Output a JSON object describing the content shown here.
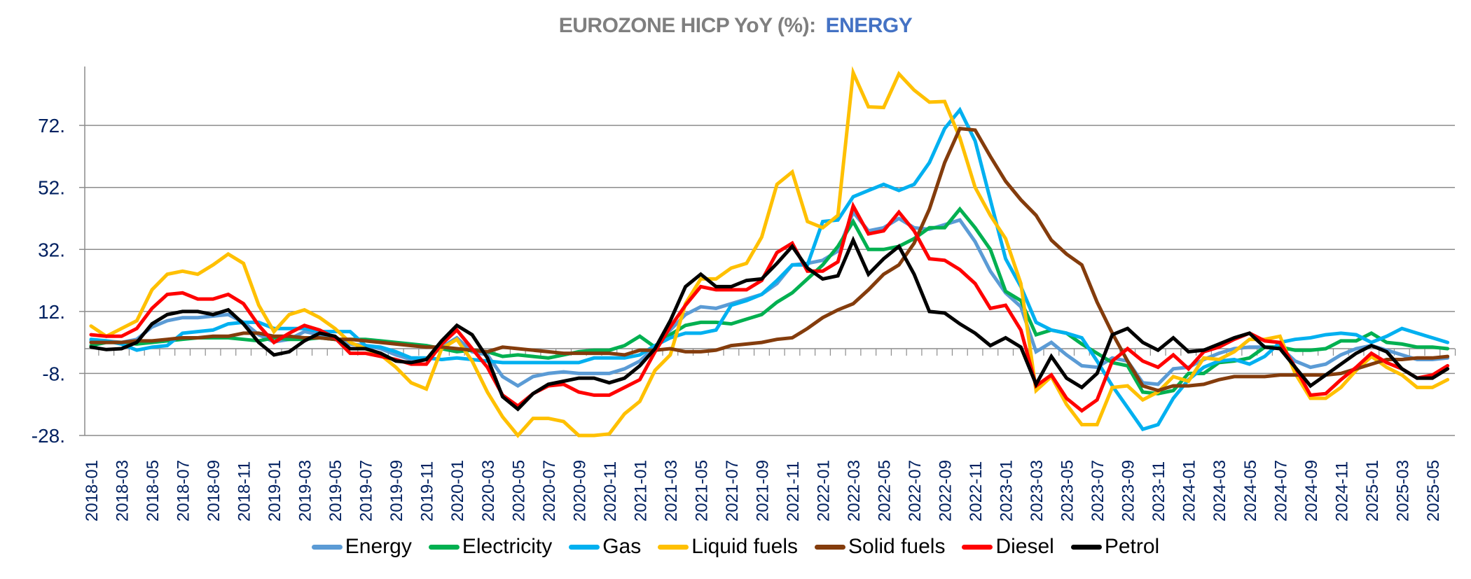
{
  "chart_data": {
    "type": "line",
    "title": "EUROZONE HICP YoY (%):",
    "title_accent": "ENERGY",
    "xlabel": "",
    "ylabel": "",
    "ylim": [
      -28,
      91
    ],
    "yticks": [
      -28,
      -8,
      12,
      32,
      52,
      72
    ],
    "ytick_labels": [
      "-28.",
      "-8.",
      "12.",
      "32.",
      "52.",
      "72."
    ],
    "grid": true,
    "legend_position": "bottom",
    "x": [
      "2018-01",
      "2018-02",
      "2018-03",
      "2018-04",
      "2018-05",
      "2018-06",
      "2018-07",
      "2018-08",
      "2018-09",
      "2018-10",
      "2018-11",
      "2018-12",
      "2019-01",
      "2019-02",
      "2019-03",
      "2019-04",
      "2019-05",
      "2019-06",
      "2019-07",
      "2019-08",
      "2019-09",
      "2019-10",
      "2019-11",
      "2019-12",
      "2020-01",
      "2020-02",
      "2020-03",
      "2020-04",
      "2020-05",
      "2020-06",
      "2020-07",
      "2020-08",
      "2020-09",
      "2020-10",
      "2020-11",
      "2020-12",
      "2021-01",
      "2021-02",
      "2021-03",
      "2021-04",
      "2021-05",
      "2021-06",
      "2021-07",
      "2021-08",
      "2021-09",
      "2021-10",
      "2021-11",
      "2021-12",
      "2022-01",
      "2022-02",
      "2022-03",
      "2022-04",
      "2022-05",
      "2022-06",
      "2022-07",
      "2022-08",
      "2022-09",
      "2022-10",
      "2022-11",
      "2022-12",
      "2023-01",
      "2023-02",
      "2023-03",
      "2023-04",
      "2023-05",
      "2023-06",
      "2023-07",
      "2023-08",
      "2023-09",
      "2023-10",
      "2023-11",
      "2023-12",
      "2024-01",
      "2024-02",
      "2024-03",
      "2024-04",
      "2024-05",
      "2024-06",
      "2024-07",
      "2024-08",
      "2024-09",
      "2024-10",
      "2024-11",
      "2024-12",
      "2025-01",
      "2025-02",
      "2025-03",
      "2025-04",
      "2025-05",
      "2025-06"
    ],
    "x_tick_labels": [
      "2018-01",
      "2018-03",
      "2018-05",
      "2018-07",
      "2018-09",
      "2018-11",
      "2019-01",
      "2019-03",
      "2019-05",
      "2019-07",
      "2019-09",
      "2019-11",
      "2020-01",
      "2020-03",
      "2020-05",
      "2020-07",
      "2020-09",
      "2020-11",
      "2021-01",
      "2021-03",
      "2021-05",
      "2021-07",
      "2021-09",
      "2021-11",
      "2022-01",
      "2022-03",
      "2022-05",
      "2022-07",
      "2022-09",
      "2022-11",
      "2023-01",
      "2023-03",
      "2023-05",
      "2023-07",
      "2023-09",
      "2023-11",
      "2024-01",
      "2024-03",
      "2024-05",
      "2024-07",
      "2024-09",
      "2024-11",
      "2025-01",
      "2025-03",
      "2025-05"
    ],
    "series": [
      {
        "name": "Energy",
        "color": "#5B9BD5",
        "values": [
          2.5,
          2.5,
          2,
          3,
          7,
          9,
          10,
          10,
          10.5,
          11,
          8.5,
          4.5,
          2.2,
          3,
          5.5,
          4.5,
          3,
          1.5,
          1,
          0,
          -2,
          -3.5,
          -3.5,
          0.5,
          3.5,
          -1,
          -2,
          -9,
          -12,
          -9,
          -8,
          -7.5,
          -8,
          -8,
          -8,
          -6.5,
          -4,
          0.5,
          6,
          11,
          13.5,
          13,
          14.5,
          16,
          17.5,
          21,
          27,
          27.5,
          28.5,
          31.5,
          44,
          38,
          39,
          42,
          39,
          38.5,
          40,
          41.5,
          34.5,
          25,
          18,
          13.5,
          -1,
          2,
          -2,
          -5.5,
          -6,
          -3,
          -4,
          -11,
          -11.5,
          -6.5,
          -6,
          -3.5,
          -1.5,
          0,
          0.5,
          0.5,
          0.5,
          -4,
          -6,
          -5,
          -2,
          0,
          1,
          -0.5,
          -2,
          -3.5,
          -3.5,
          -3
        ]
      },
      {
        "name": "Electricity",
        "color": "#00B050",
        "values": [
          1,
          2,
          2,
          1.5,
          2,
          2.5,
          3,
          3.5,
          3.5,
          3.5,
          3,
          2.5,
          3.5,
          3,
          3,
          3.5,
          3,
          3,
          3,
          2.5,
          2,
          1.5,
          1,
          0,
          -1,
          -0.5,
          -1,
          -2.5,
          -2,
          -2.5,
          -3,
          -2,
          -1,
          -0.5,
          -0.5,
          1,
          4,
          0.5,
          4.5,
          7.5,
          8.5,
          8.5,
          8,
          9.5,
          11,
          15,
          18,
          22.5,
          27,
          33,
          41,
          32,
          32,
          33,
          35.5,
          39,
          39,
          45,
          39,
          32,
          18.5,
          15.5,
          4.5,
          6,
          5,
          1.5,
          -1.5,
          -4.5,
          -5.5,
          -14,
          -14.5,
          -13.5,
          -8,
          -8,
          -4.5,
          -4,
          -3,
          0.5,
          0.5,
          -0.5,
          -0.5,
          0,
          2.5,
          2.5,
          5,
          2,
          1.5,
          0.5,
          0.5,
          0
        ]
      },
      {
        "name": "Gas",
        "color": "#00B0F0",
        "values": [
          3,
          2.5,
          1.5,
          -0.5,
          0.5,
          1,
          5,
          5.5,
          6,
          8,
          8.5,
          8.5,
          6.5,
          6.5,
          6.5,
          5.5,
          5.5,
          5.5,
          1,
          0.5,
          -1,
          -3,
          -3,
          -3.5,
          -3,
          -3.5,
          -4,
          -4.5,
          -4.5,
          -4.5,
          -4.5,
          -4.5,
          -4.5,
          -3,
          -3,
          -3,
          -2,
          1,
          3.5,
          5,
          5,
          6,
          14,
          15.5,
          17.5,
          22,
          27,
          27,
          41,
          41.5,
          49,
          51,
          53,
          51,
          53,
          60,
          71,
          77,
          67,
          48,
          29,
          20,
          8.5,
          6,
          5,
          3.5,
          -4,
          -12,
          -19,
          -26,
          -24.5,
          -16,
          -10,
          -6,
          -4,
          -3.5,
          -5,
          -2.5,
          2,
          3,
          3.5,
          4.5,
          5,
          4.5,
          2,
          4,
          6.5,
          5,
          3.5,
          2
        ]
      },
      {
        "name": "Liquid fuels",
        "color": "#FFC000",
        "values": [
          7.3,
          4,
          6.5,
          9,
          19,
          24,
          25,
          24,
          27,
          30.5,
          27.5,
          14,
          5.5,
          11,
          12.5,
          10,
          6.5,
          2,
          0,
          -2,
          -6,
          -11,
          -13,
          0,
          3,
          -4,
          -14,
          -22,
          -28,
          -22.5,
          -22.5,
          -23.5,
          -28,
          -28,
          -27.5,
          -21,
          -17,
          -7,
          -2,
          14.5,
          22.5,
          22.5,
          26,
          27.5,
          36,
          53,
          57,
          41,
          39,
          43,
          89,
          78,
          77.8,
          88.6,
          83.4,
          79.5,
          79.7,
          68,
          52,
          43,
          35.5,
          21,
          -13.5,
          -9,
          -18,
          -24.5,
          -24.5,
          -12.5,
          -12,
          -16.5,
          -14,
          -9,
          -10.5,
          -3,
          -3.5,
          -1,
          3,
          3,
          4,
          -8,
          -16,
          -16,
          -12.5,
          -7,
          -2.5,
          -6,
          -8.5,
          -12.5,
          -12.5,
          -10
        ]
      },
      {
        "name": "Solid fuels",
        "color": "#843C0C",
        "values": [
          2,
          2,
          2,
          2.5,
          2.5,
          3,
          3.5,
          3.5,
          4,
          4,
          5,
          5,
          4,
          4,
          3.5,
          3.5,
          3,
          3,
          2.5,
          2,
          1.5,
          1,
          0.5,
          0.5,
          0,
          -0.5,
          -1,
          0.5,
          0,
          -0.5,
          -1,
          -1.5,
          -1.5,
          -1.5,
          -1.5,
          -2,
          -0.5,
          -0.5,
          0,
          -1,
          -1,
          -0.5,
          1,
          1.5,
          2,
          3,
          3.5,
          6.5,
          10,
          12.5,
          14.5,
          19,
          24,
          27,
          34,
          45,
          60,
          71,
          70.5,
          62,
          54,
          48,
          43,
          35,
          30.5,
          27,
          15,
          5,
          -4,
          -12,
          -13.5,
          -12,
          -12,
          -11.5,
          -10,
          -9,
          -9,
          -9,
          -8.5,
          -8.5,
          -8.5,
          -8.5,
          -8,
          -6.5,
          -5,
          -3.5,
          -3.5,
          -3,
          -3,
          -2.5
        ]
      },
      {
        "name": "Diesel",
        "color": "#FF0000",
        "values": [
          4.5,
          4,
          4,
          6.5,
          13,
          17.5,
          18,
          16,
          16,
          17.5,
          14.5,
          7.5,
          2,
          5,
          7.5,
          6,
          3.5,
          -1.5,
          -1.5,
          -2.5,
          -3.5,
          -5,
          -5,
          1.5,
          6,
          0,
          -6,
          -15,
          -18.5,
          -14.5,
          -12,
          -11.5,
          -14,
          -15,
          -15,
          -12.5,
          -10,
          -1,
          7,
          14,
          20,
          19,
          19,
          19,
          22,
          31,
          34,
          25,
          25,
          28,
          46,
          37,
          38,
          44,
          38,
          29,
          28.5,
          25.5,
          21,
          13,
          14,
          6,
          -12,
          -8.5,
          -16,
          -20,
          -16.5,
          -4,
          0,
          -4,
          -6,
          -2,
          -6.5,
          -1,
          0.5,
          3,
          5,
          2.5,
          2,
          -6,
          -15,
          -14.5,
          -10,
          -6,
          -1.5,
          -4.5,
          -6.5,
          -9.5,
          -8.5,
          -5.5
        ]
      },
      {
        "name": "Petrol",
        "color": "#000000",
        "values": [
          0.5,
          -0.3,
          0,
          2,
          8,
          11,
          12,
          12,
          11,
          12.5,
          8,
          2,
          -2,
          -1,
          2.5,
          5,
          4,
          0,
          0,
          -1.5,
          -4,
          -4.5,
          -3.5,
          2.5,
          7.5,
          4.5,
          -3,
          -15.5,
          -19.5,
          -14.5,
          -11.5,
          -10.5,
          -9.5,
          -9.5,
          -11,
          -9.5,
          -5.5,
          0,
          9,
          20,
          24,
          20,
          20,
          22,
          22.5,
          27.5,
          33,
          26,
          22.5,
          23.5,
          35,
          24,
          29,
          33,
          24,
          12,
          11.5,
          8,
          5,
          1,
          3.5,
          0.5,
          -11.5,
          -2.5,
          -9.5,
          -12.5,
          -8,
          4.5,
          6.5,
          2,
          -0.5,
          3.5,
          -1,
          -0.5,
          1.5,
          3.5,
          5,
          0.5,
          0,
          -6,
          -12,
          -8.5,
          -5,
          -1.5,
          1,
          -1,
          -6.5,
          -9.5,
          -9.5,
          -6.5
        ]
      }
    ]
  }
}
